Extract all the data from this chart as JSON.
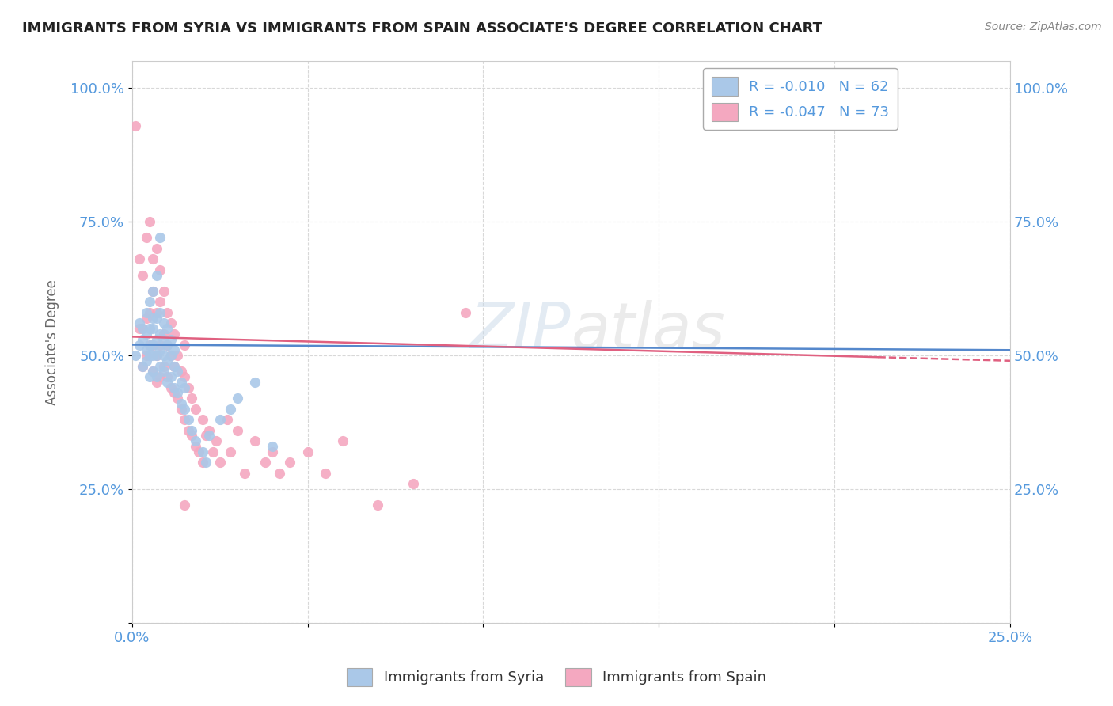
{
  "title": "IMMIGRANTS FROM SYRIA VS IMMIGRANTS FROM SPAIN ASSOCIATE'S DEGREE CORRELATION CHART",
  "source_text": "Source: ZipAtlas.com",
  "ylabel": "Associate's Degree",
  "xlim": [
    0.0,
    0.25
  ],
  "ylim": [
    0.0,
    1.05
  ],
  "color_syria": "#aac8e8",
  "color_spain": "#f4a8c0",
  "line_color_syria": "#5588cc",
  "line_color_spain": "#e06080",
  "background_color": "#ffffff",
  "title_color": "#222222",
  "axis_color": "#5599dd",
  "grid_color": "#d8d8d8",
  "syria_x": [
    0.001,
    0.002,
    0.002,
    0.003,
    0.003,
    0.003,
    0.004,
    0.004,
    0.004,
    0.004,
    0.005,
    0.005,
    0.005,
    0.005,
    0.005,
    0.006,
    0.006,
    0.006,
    0.006,
    0.006,
    0.006,
    0.007,
    0.007,
    0.007,
    0.007,
    0.007,
    0.008,
    0.008,
    0.008,
    0.008,
    0.008,
    0.009,
    0.009,
    0.009,
    0.009,
    0.01,
    0.01,
    0.01,
    0.01,
    0.011,
    0.011,
    0.011,
    0.012,
    0.012,
    0.012,
    0.013,
    0.013,
    0.014,
    0.014,
    0.015,
    0.015,
    0.016,
    0.017,
    0.018,
    0.02,
    0.021,
    0.022,
    0.025,
    0.028,
    0.03,
    0.035,
    0.04
  ],
  "syria_y": [
    0.5,
    0.52,
    0.56,
    0.48,
    0.53,
    0.55,
    0.49,
    0.51,
    0.54,
    0.58,
    0.46,
    0.5,
    0.52,
    0.55,
    0.6,
    0.47,
    0.5,
    0.52,
    0.55,
    0.57,
    0.62,
    0.46,
    0.5,
    0.53,
    0.57,
    0.65,
    0.48,
    0.51,
    0.54,
    0.58,
    0.72,
    0.47,
    0.5,
    0.53,
    0.56,
    0.45,
    0.49,
    0.52,
    0.55,
    0.46,
    0.5,
    0.53,
    0.44,
    0.48,
    0.51,
    0.43,
    0.47,
    0.41,
    0.45,
    0.4,
    0.44,
    0.38,
    0.36,
    0.34,
    0.32,
    0.3,
    0.35,
    0.38,
    0.4,
    0.42,
    0.45,
    0.33
  ],
  "spain_x": [
    0.001,
    0.002,
    0.002,
    0.003,
    0.003,
    0.003,
    0.004,
    0.004,
    0.004,
    0.005,
    0.005,
    0.005,
    0.006,
    0.006,
    0.006,
    0.006,
    0.007,
    0.007,
    0.007,
    0.007,
    0.008,
    0.008,
    0.008,
    0.008,
    0.009,
    0.009,
    0.009,
    0.01,
    0.01,
    0.01,
    0.011,
    0.011,
    0.011,
    0.012,
    0.012,
    0.012,
    0.013,
    0.013,
    0.014,
    0.014,
    0.015,
    0.015,
    0.015,
    0.016,
    0.016,
    0.017,
    0.017,
    0.018,
    0.018,
    0.019,
    0.02,
    0.02,
    0.021,
    0.022,
    0.023,
    0.024,
    0.025,
    0.027,
    0.028,
    0.03,
    0.032,
    0.035,
    0.038,
    0.04,
    0.042,
    0.045,
    0.05,
    0.055,
    0.06,
    0.07,
    0.08,
    0.095,
    0.015
  ],
  "spain_y": [
    0.93,
    0.55,
    0.68,
    0.48,
    0.55,
    0.65,
    0.5,
    0.57,
    0.72,
    0.52,
    0.58,
    0.75,
    0.47,
    0.52,
    0.62,
    0.68,
    0.45,
    0.5,
    0.58,
    0.7,
    0.46,
    0.52,
    0.6,
    0.66,
    0.48,
    0.54,
    0.62,
    0.46,
    0.52,
    0.58,
    0.44,
    0.5,
    0.56,
    0.43,
    0.48,
    0.54,
    0.42,
    0.5,
    0.4,
    0.47,
    0.38,
    0.46,
    0.52,
    0.36,
    0.44,
    0.35,
    0.42,
    0.33,
    0.4,
    0.32,
    0.3,
    0.38,
    0.35,
    0.36,
    0.32,
    0.34,
    0.3,
    0.38,
    0.32,
    0.36,
    0.28,
    0.34,
    0.3,
    0.32,
    0.28,
    0.3,
    0.32,
    0.28,
    0.34,
    0.22,
    0.26,
    0.58,
    0.22
  ]
}
